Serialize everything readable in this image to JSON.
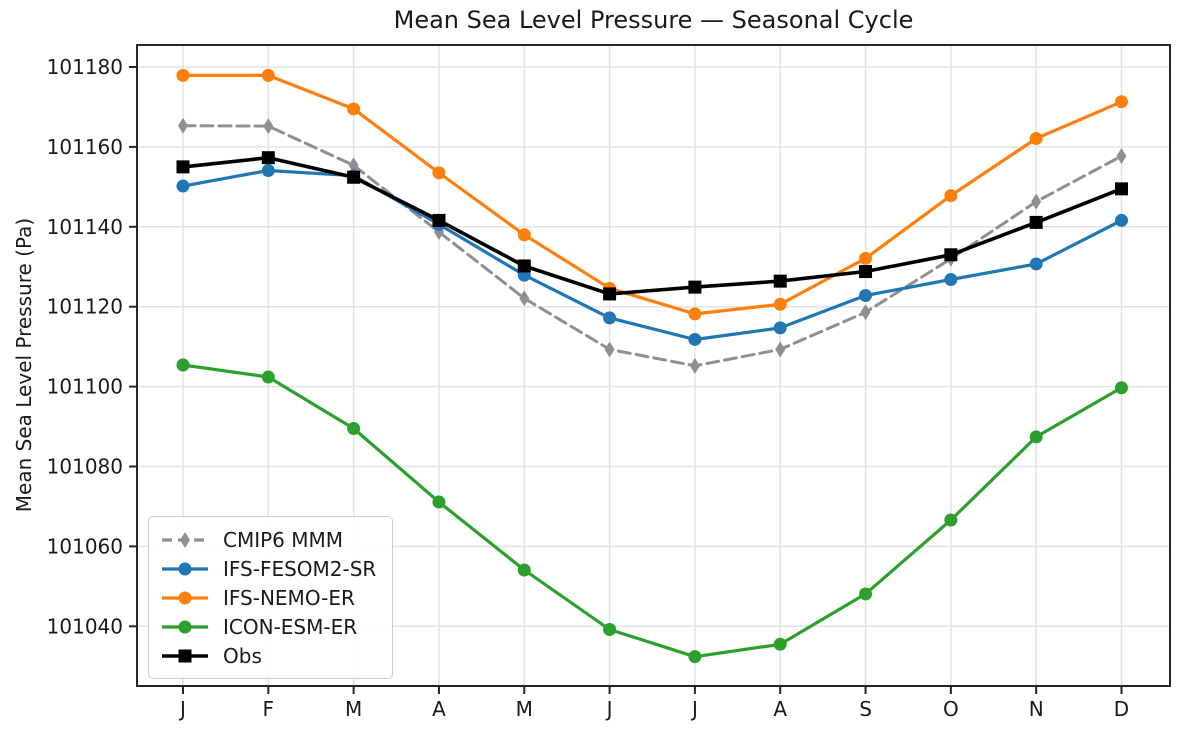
{
  "figure": {
    "background": "#ffffff"
  },
  "axis": {
    "tick_color": "#1a1a1a",
    "spine_color": "#262626",
    "grid_color": "#e3e3e3"
  },
  "chart_data": {
    "type": "line",
    "title": "Mean Sea Level Pressure — Seasonal Cycle",
    "xlabel": "",
    "ylabel": "Mean Sea Level Pressure (Pa)",
    "categories": [
      "J",
      "F",
      "M",
      "A",
      "M",
      "J",
      "J",
      "A",
      "S",
      "O",
      "N",
      "D"
    ],
    "yticks": [
      101040,
      101060,
      101080,
      101100,
      101120,
      101140,
      101160,
      101180
    ],
    "ylim": [
      101025,
      101186
    ],
    "grid": true,
    "legend_position": "lower left",
    "series": [
      {
        "name": "CMIP6 MMM",
        "color": "#8f8f8f",
        "linestyle": "dashed",
        "marker": "diamond",
        "values": [
          101165.3,
          101165.2,
          101155.4,
          101138.7,
          101122.1,
          101109.3,
          101105.2,
          101109.3,
          101118.6,
          101132.0,
          101146.3,
          101157.7
        ]
      },
      {
        "name": "IFS-FESOM2-SR",
        "color": "#1f77b4",
        "linestyle": "solid",
        "marker": "circle",
        "values": [
          101150.2,
          101154.1,
          101152.8,
          101140.6,
          101127.9,
          101117.2,
          101111.8,
          101114.7,
          101122.8,
          101126.8,
          101130.7,
          101141.6
        ]
      },
      {
        "name": "IFS-NEMO-ER",
        "color": "#ff7f0e",
        "linestyle": "solid",
        "marker": "circle",
        "values": [
          101177.9,
          101177.9,
          101169.5,
          101153.5,
          101138.0,
          101124.6,
          101118.2,
          101120.6,
          101132.1,
          101147.8,
          101162.1,
          101171.3
        ]
      },
      {
        "name": "ICON-ESM-ER",
        "color": "#2ca02c",
        "linestyle": "solid",
        "marker": "circle",
        "values": [
          101105.4,
          101102.4,
          101089.5,
          101071.1,
          101054.1,
          101039.2,
          101032.4,
          101035.5,
          101048.1,
          101066.6,
          101087.4,
          101099.7
        ]
      },
      {
        "name": "Obs",
        "color": "#000000",
        "linestyle": "solid",
        "marker": "square",
        "values": [
          101155.0,
          101157.3,
          101152.4,
          101141.6,
          101130.2,
          101123.2,
          101124.9,
          101126.4,
          101128.8,
          101133.0,
          101141.1,
          101149.5
        ]
      }
    ]
  }
}
